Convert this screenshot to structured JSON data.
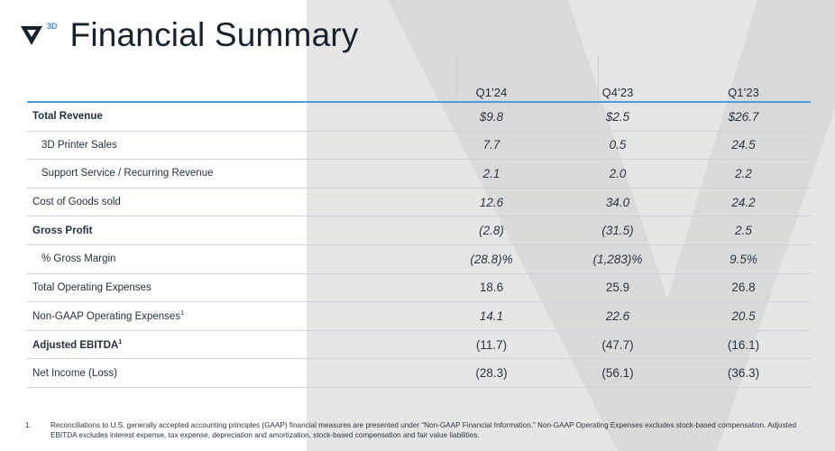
{
  "header": {
    "logo_sup": "3D",
    "title": "Financial Summary"
  },
  "table": {
    "columns": [
      "",
      "Q1’24",
      "Q4’23",
      "Q1’23"
    ],
    "rows": [
      {
        "label": "Total Revenue",
        "style": "bold",
        "values": [
          "$9.8",
          "$2.5",
          "$26.7"
        ],
        "italic": true
      },
      {
        "label": "3D Printer Sales",
        "style": "indent",
        "values": [
          "7.7",
          "0.5",
          "24.5"
        ],
        "italic": true
      },
      {
        "label": "Support Service / Recurring Revenue",
        "style": "indent",
        "values": [
          "2.1",
          "2.0",
          "2.2"
        ],
        "italic": true
      },
      {
        "label": "Cost of Goods sold",
        "style": "",
        "values": [
          "12.6",
          "34.0",
          "24.2"
        ],
        "italic": true
      },
      {
        "label": "Gross Profit",
        "style": "bold",
        "values": [
          "(2.8)",
          "(31.5)",
          "2.5"
        ],
        "italic": true
      },
      {
        "label": "% Gross Margin",
        "style": "indent",
        "values": [
          "(28.8)%",
          "(1,283)%",
          "9.5%"
        ],
        "italic": true
      },
      {
        "label": "Total Operating Expenses",
        "style": "",
        "values": [
          "18.6",
          "25.9",
          "26.8"
        ],
        "italic": false
      },
      {
        "label": "Non-GAAP Operating Expenses",
        "footnote": "1",
        "style": "",
        "values": [
          "14.1",
          "22.6",
          "20.5"
        ],
        "italic": true
      },
      {
        "label": "Adjusted EBITDA",
        "footnote": "1",
        "style": "bold",
        "values": [
          "(11.7)",
          "(47.7)",
          "(16.1)"
        ],
        "italic": false
      },
      {
        "label": "Net Income (Loss)",
        "style": "",
        "values": [
          "(28.3)",
          "(56.1)",
          "(36.3)"
        ],
        "italic": false
      }
    ]
  },
  "footnote": {
    "number": "1.",
    "text": "Reconciliations to U.S. generally accepted accounting principles (GAAP) financial measures are presented under “Non-GAAP Financial Information.” Non-GAAP Operating Expenses excludes stock-based compensation. Adjusted EBITDA excludes interest expense, tax expense, depreciation and amortization, stock-based compensation and fair value liabilities."
  },
  "colors": {
    "accent": "#4a9ee0",
    "title": "#16222e",
    "background_panel": "#e6e6e6"
  }
}
